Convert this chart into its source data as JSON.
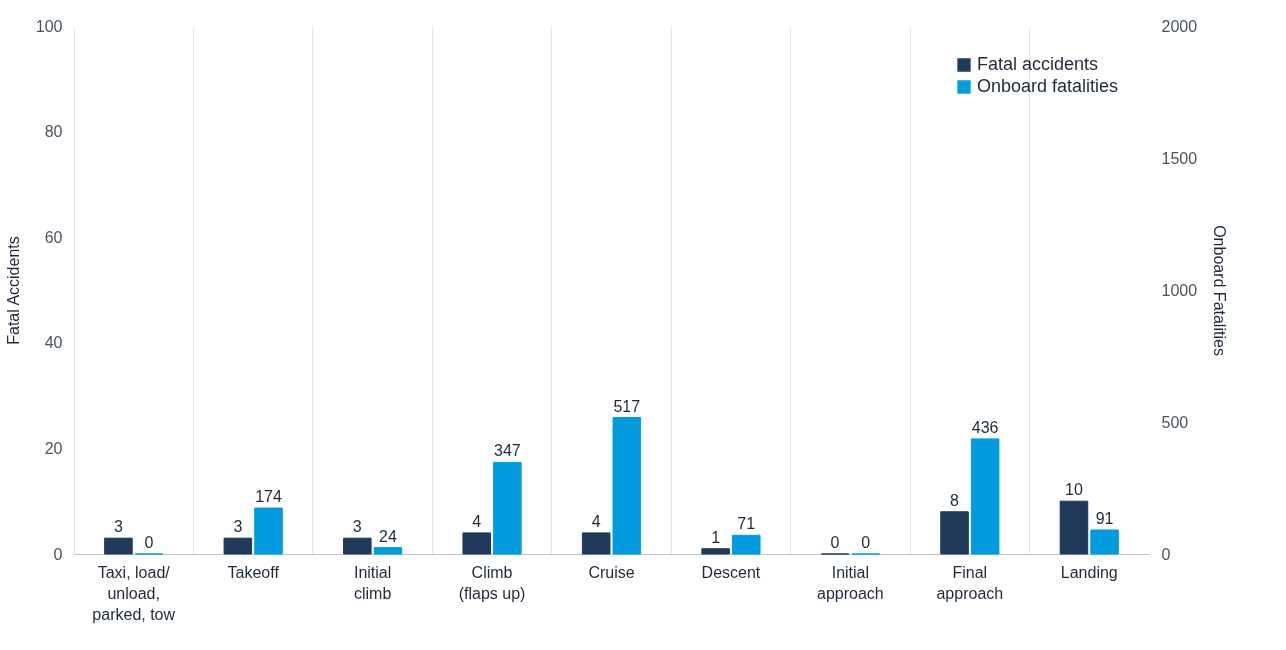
{
  "chart_data": {
    "type": "bar",
    "categories": [
      "Taxi, load/ unload, parked, tow",
      "Takeoff",
      "Initial climb",
      "Climb (flaps up)",
      "Cruise",
      "Descent",
      "Initial approach",
      "Final approach",
      "Landing"
    ],
    "series": [
      {
        "name": "Fatal accidents",
        "color": "#1f3a5a",
        "values": [
          3,
          3,
          3,
          4,
          4,
          1,
          0,
          8,
          10
        ]
      },
      {
        "name": "Onboard fatalities",
        "color": "#009cde",
        "axis": "y2",
        "values": [
          0,
          174,
          24,
          347,
          517,
          71,
          0,
          436,
          91
        ]
      }
    ],
    "ylabel": "Fatal Accidents",
    "y2label": "Onboard Fatalities",
    "ylim": [
      0,
      100
    ],
    "yticks": [
      0,
      20,
      40,
      60,
      80,
      100
    ],
    "y2lim": [
      0,
      2000
    ],
    "y2ticks": [
      0,
      500,
      1000,
      1500,
      2000
    ],
    "grid": "x",
    "legend": "top right",
    "data_labels": true
  }
}
